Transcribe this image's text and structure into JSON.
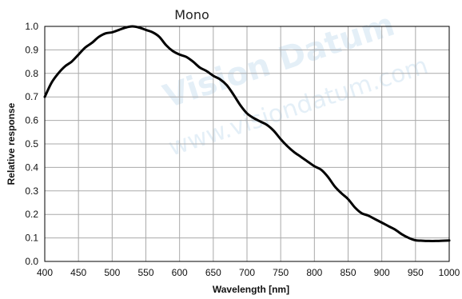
{
  "watermark": {
    "brand": "Vision Datum",
    "url": "www.visiondatum.com"
  },
  "chart_data": {
    "type": "line",
    "title": "Mono",
    "xlabel": "Wavelength [nm]",
    "ylabel": "Relative response",
    "xlim": [
      400,
      1000
    ],
    "ylim": [
      0,
      1.0
    ],
    "xticks": [
      400,
      450,
      500,
      550,
      600,
      650,
      700,
      750,
      800,
      850,
      900,
      950,
      1000
    ],
    "yticks": [
      "0.0",
      "0.1",
      "0.2",
      "0.3",
      "0.4",
      "0.5",
      "0.6",
      "0.7",
      "0.8",
      "0.9",
      "1.0"
    ],
    "grid": true,
    "line_color": "#000000",
    "series": [
      {
        "x": [
          400,
          410,
          420,
          430,
          440,
          450,
          460,
          470,
          480,
          490,
          500,
          510,
          520,
          530,
          540,
          550,
          560,
          570,
          580,
          590,
          600,
          610,
          620,
          630,
          640,
          650,
          660,
          670,
          680,
          690,
          700,
          710,
          720,
          730,
          740,
          750,
          760,
          770,
          780,
          790,
          800,
          810,
          820,
          830,
          840,
          850,
          860,
          870,
          880,
          890,
          900,
          910,
          920,
          930,
          940,
          950,
          960,
          970,
          980,
          990,
          1000
        ],
        "y": [
          0.7,
          0.76,
          0.8,
          0.83,
          0.85,
          0.88,
          0.91,
          0.93,
          0.955,
          0.97,
          0.975,
          0.985,
          0.995,
          1.0,
          0.995,
          0.985,
          0.975,
          0.955,
          0.92,
          0.895,
          0.88,
          0.87,
          0.85,
          0.825,
          0.81,
          0.79,
          0.775,
          0.75,
          0.71,
          0.665,
          0.63,
          0.61,
          0.595,
          0.58,
          0.555,
          0.52,
          0.49,
          0.465,
          0.445,
          0.425,
          0.405,
          0.39,
          0.36,
          0.32,
          0.29,
          0.265,
          0.23,
          0.205,
          0.195,
          0.18,
          0.165,
          0.15,
          0.135,
          0.115,
          0.1,
          0.09,
          0.088,
          0.087,
          0.087,
          0.088,
          0.089
        ]
      }
    ]
  }
}
